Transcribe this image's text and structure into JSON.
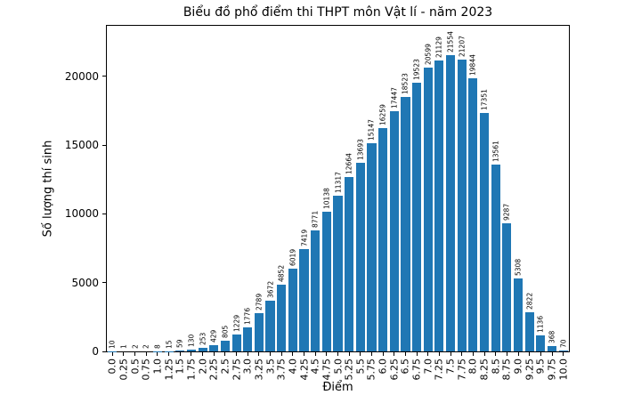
{
  "chart_data": {
    "type": "bar",
    "title": "Biểu đồ phổ điểm thi THPT môn Vật lí - năm 2023",
    "xlabel": "Điểm",
    "ylabel": "Số lượng thí sinh",
    "bar_color": "#1f77b4",
    "categories": [
      "0.0",
      "0.25",
      "0.5",
      "0.75",
      "1.0",
      "1.25",
      "1.5",
      "1.75",
      "2.0",
      "2.25",
      "2.5",
      "2.75",
      "3.0",
      "3.25",
      "3.5",
      "3.75",
      "4.0",
      "4.25",
      "4.5",
      "4.75",
      "5.0",
      "5.25",
      "5.5",
      "5.75",
      "6.0",
      "6.25",
      "6.5",
      "6.75",
      "7.0",
      "7.25",
      "7.5",
      "7.75",
      "8.0",
      "8.25",
      "8.5",
      "8.75",
      "9.0",
      "9.25",
      "9.5",
      "9.75",
      "10.0"
    ],
    "values": [
      10,
      1,
      2,
      2,
      8,
      15,
      59,
      130,
      253,
      429,
      805,
      1229,
      1776,
      2789,
      3672,
      4852,
      6019,
      7419,
      8771,
      10138,
      11317,
      12664,
      13693,
      15147,
      16259,
      17447,
      18523,
      19523,
      20599,
      21129,
      21554,
      21207,
      19844,
      17351,
      13561,
      9287,
      5308,
      2822,
      1136,
      368,
      70
    ],
    "yticks": [
      0,
      5000,
      10000,
      15000,
      20000
    ],
    "ylim": [
      0,
      23666
    ],
    "xlim_note": "scores 0.0 to 10.0 step 0.25",
    "grid": false,
    "legend": null,
    "value_labels_rotation": 90,
    "xtick_rotation": 90
  }
}
